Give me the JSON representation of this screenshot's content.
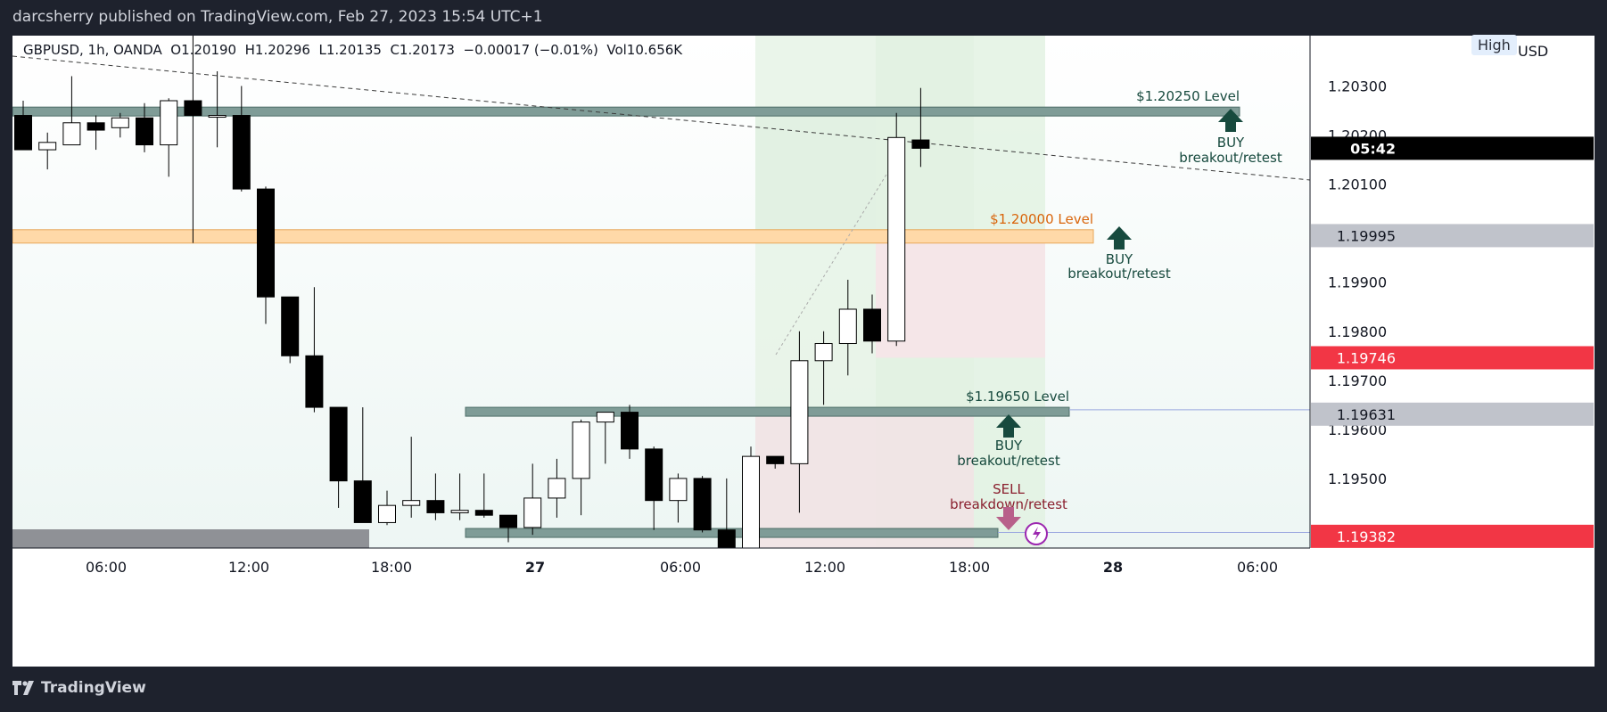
{
  "header": {
    "published": "darcsherry published on TradingView.com, Feb 27, 2023 15:54 UTC+1"
  },
  "legend": {
    "symbol": "GBPUSD, 1h, OANDA",
    "open": "O1.20190",
    "high": "H1.20296",
    "low": "L1.20135",
    "close": "C1.20173",
    "change": "−0.00017 (−0.01%)",
    "volume": "Vol10.656K"
  },
  "price_axis": {
    "currency": "USD",
    "high_badge": "High"
  },
  "footer": {
    "brand": "TradingView"
  },
  "colors": {
    "up_candle": "#ffffff",
    "down_candle": "#000000",
    "level_band": "#708f8a",
    "orange_band": "#ffd8a8",
    "buy_arrow": "#174a3e",
    "sell_arrow": "#b8608a",
    "sell_text": "#8a1f2e",
    "orange_text": "#d9650b",
    "current_price_label": "#000000",
    "red_label": "#f23645",
    "gray_label": "#c0c3cb"
  },
  "chart_data": {
    "type": "candlestick",
    "symbol": "GBPUSD",
    "interval": "1h",
    "ylim": [
      1.1935,
      1.204
    ],
    "x_labels": [
      "06:00",
      "12:00",
      "18:00",
      "27",
      "06:00",
      "12:00",
      "18:00",
      "28",
      "06:00"
    ],
    "y_ticks": [
      "1.20300",
      "1.20200",
      "1.20100",
      "1.19900",
      "1.19800",
      "1.19700",
      "1.19600",
      "1.19500"
    ],
    "candles": [
      {
        "o": 1.2024,
        "h": 1.2027,
        "l": 1.2017,
        "c": 1.2017
      },
      {
        "o": 1.2017,
        "h": 1.20205,
        "l": 1.2013,
        "c": 1.20185
      },
      {
        "o": 1.2018,
        "h": 1.2032,
        "l": 1.2018,
        "c": 1.20225
      },
      {
        "o": 1.20225,
        "h": 1.2024,
        "l": 1.2017,
        "c": 1.2021
      },
      {
        "o": 1.20215,
        "h": 1.20245,
        "l": 1.20195,
        "c": 1.20235
      },
      {
        "o": 1.20235,
        "h": 1.20265,
        "l": 1.20165,
        "c": 1.2018
      },
      {
        "o": 1.2018,
        "h": 1.20275,
        "l": 1.20115,
        "c": 1.2027
      },
      {
        "o": 1.2027,
        "h": 1.2051,
        "l": 1.1998,
        "c": 1.2024
      },
      {
        "o": 1.2024,
        "h": 1.2033,
        "l": 1.20175,
        "c": 1.2024
      },
      {
        "o": 1.2024,
        "h": 1.203,
        "l": 1.20085,
        "c": 1.2009
      },
      {
        "o": 1.2009,
        "h": 1.20095,
        "l": 1.19815,
        "c": 1.1987
      },
      {
        "o": 1.1987,
        "h": 1.1987,
        "l": 1.19735,
        "c": 1.1975
      },
      {
        "o": 1.1975,
        "h": 1.1989,
        "l": 1.19635,
        "c": 1.19645
      },
      {
        "o": 1.19645,
        "h": 1.19645,
        "l": 1.1944,
        "c": 1.19495
      },
      {
        "o": 1.19495,
        "h": 1.19645,
        "l": 1.1942,
        "c": 1.1941
      },
      {
        "o": 1.1941,
        "h": 1.19475,
        "l": 1.19405,
        "c": 1.19445
      },
      {
        "o": 1.19445,
        "h": 1.19585,
        "l": 1.1942,
        "c": 1.19455
      },
      {
        "o": 1.19455,
        "h": 1.1951,
        "l": 1.19415,
        "c": 1.1943
      },
      {
        "o": 1.1943,
        "h": 1.1951,
        "l": 1.19415,
        "c": 1.19435
      },
      {
        "o": 1.19435,
        "h": 1.1951,
        "l": 1.1942,
        "c": 1.19425
      },
      {
        "o": 1.19425,
        "h": 1.19425,
        "l": 1.1937,
        "c": 1.194
      },
      {
        "o": 1.194,
        "h": 1.1953,
        "l": 1.19385,
        "c": 1.1946
      },
      {
        "o": 1.1946,
        "h": 1.1954,
        "l": 1.1942,
        "c": 1.195
      },
      {
        "o": 1.195,
        "h": 1.1962,
        "l": 1.19425,
        "c": 1.19615
      },
      {
        "o": 1.19615,
        "h": 1.1963,
        "l": 1.1953,
        "c": 1.19635
      },
      {
        "o": 1.19635,
        "h": 1.1965,
        "l": 1.1954,
        "c": 1.1956
      },
      {
        "o": 1.1956,
        "h": 1.19565,
        "l": 1.19395,
        "c": 1.19455
      },
      {
        "o": 1.19455,
        "h": 1.1951,
        "l": 1.1941,
        "c": 1.195
      },
      {
        "o": 1.195,
        "h": 1.19505,
        "l": 1.1939,
        "c": 1.19395
      },
      {
        "o": 1.19395,
        "h": 1.195,
        "l": 1.1935,
        "c": 1.1935
      },
      {
        "o": 1.1935,
        "h": 1.19565,
        "l": 1.1935,
        "c": 1.19545
      },
      {
        "o": 1.19545,
        "h": 1.19545,
        "l": 1.1952,
        "c": 1.1953
      },
      {
        "o": 1.1953,
        "h": 1.198,
        "l": 1.1943,
        "c": 1.1974
      },
      {
        "o": 1.1974,
        "h": 1.198,
        "l": 1.1965,
        "c": 1.19775
      },
      {
        "o": 1.19775,
        "h": 1.19905,
        "l": 1.1971,
        "c": 1.19845
      },
      {
        "o": 1.19845,
        "h": 1.19875,
        "l": 1.19755,
        "c": 1.1978
      },
      {
        "o": 1.1978,
        "h": 1.20245,
        "l": 1.1977,
        "c": 1.20195
      },
      {
        "o": 1.2019,
        "h": 1.20296,
        "l": 1.20135,
        "c": 1.20173
      }
    ],
    "levels": [
      {
        "label": "$1.20250 Level",
        "value": 1.2025,
        "color": "teal"
      },
      {
        "label": "$1.20000 Level",
        "value": 1.2,
        "color": "orange"
      },
      {
        "label": "$1.19650 Level",
        "value": 1.1965,
        "color": "teal"
      },
      {
        "label": "",
        "value": 1.1939,
        "color": "teal"
      }
    ],
    "annotations": [
      {
        "label": "BUY",
        "sub": "breakout/retest"
      },
      {
        "label": "BUY",
        "sub": "breakout/retest"
      },
      {
        "label": "BUY",
        "sub": "breakout/retest"
      },
      {
        "label": "SELL",
        "sub": "breakdown/retest"
      }
    ],
    "price_labels": [
      {
        "text": "05:42",
        "value": 1.20173
      },
      {
        "text": "1.19995",
        "value": 1.19995
      },
      {
        "text": "1.19746",
        "value": 1.19746
      },
      {
        "text": "1.19631",
        "value": 1.19631
      },
      {
        "text": "1.19382",
        "value": 1.19382
      }
    ]
  }
}
